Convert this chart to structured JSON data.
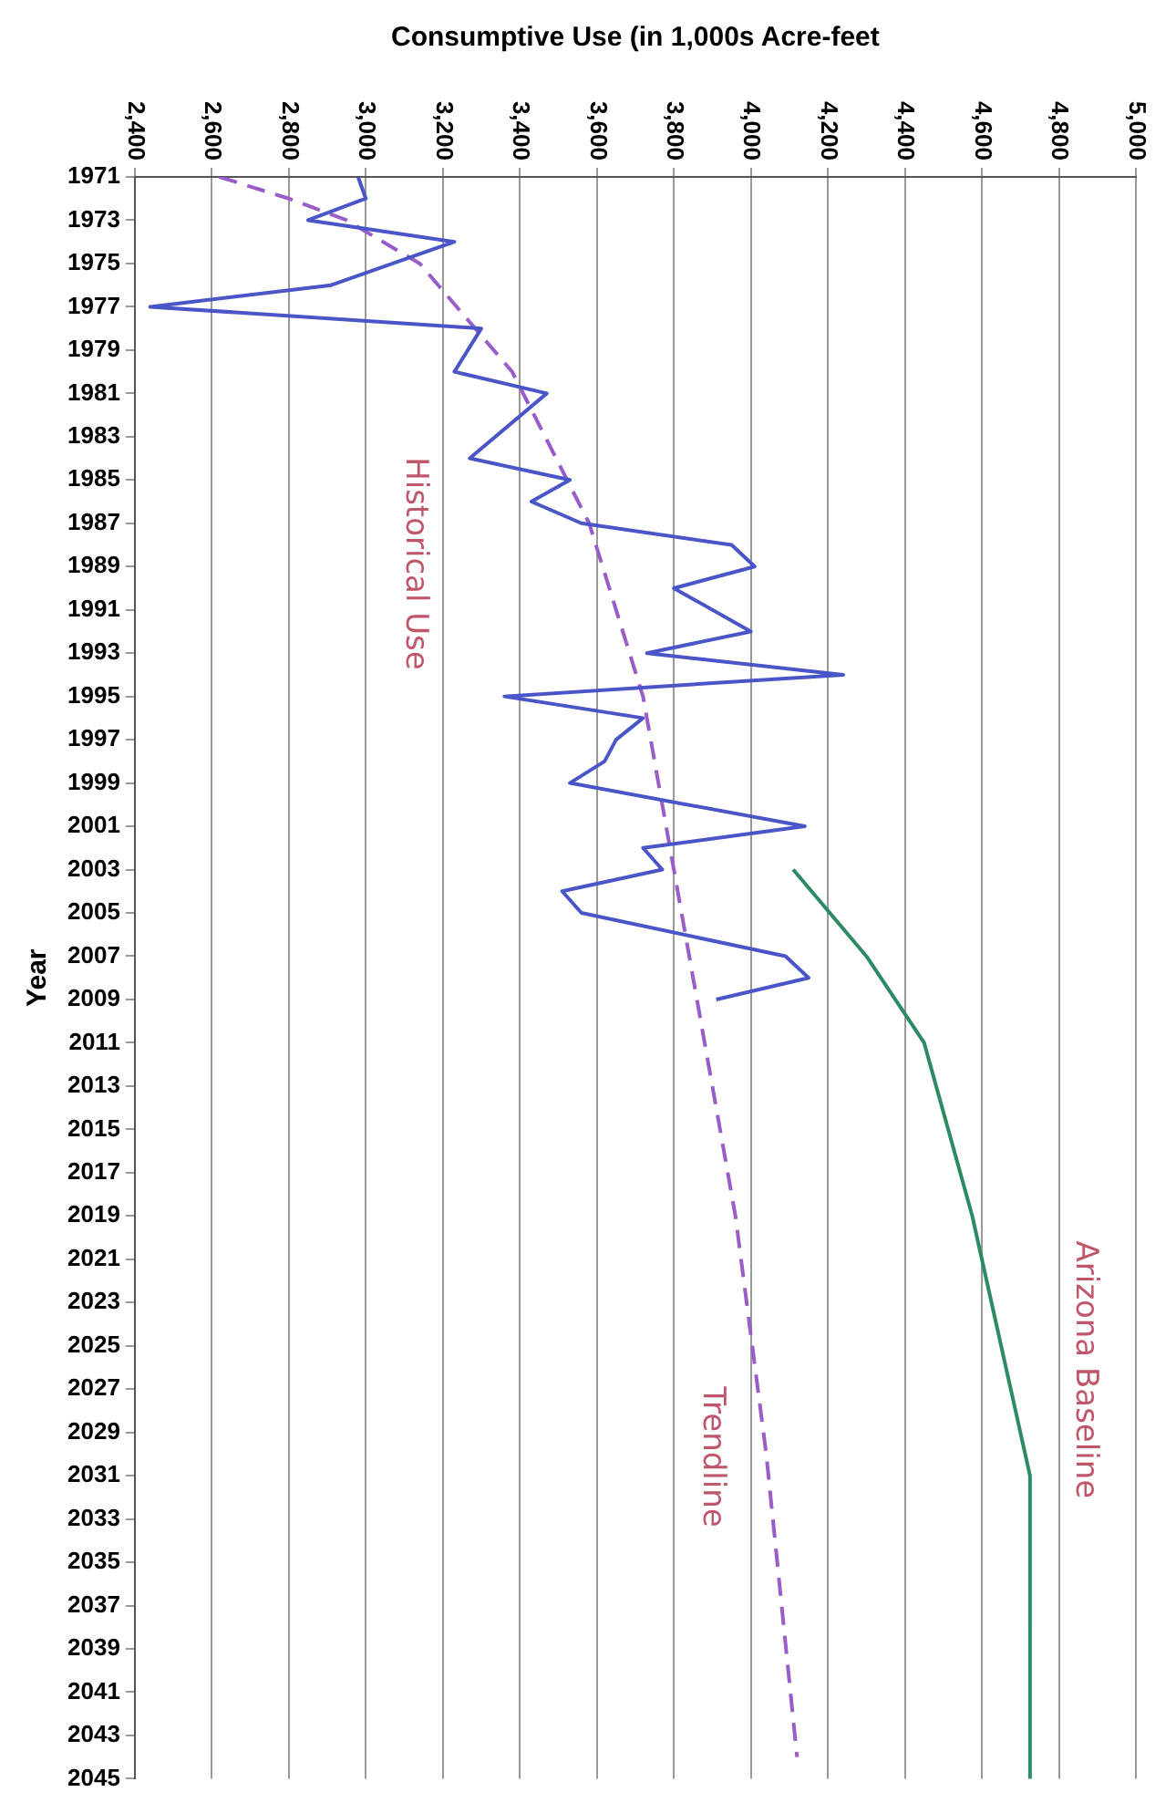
{
  "chart_data": {
    "type": "line",
    "orientation": "horizontal",
    "xlabel": "Consumptive Use (in 1,000s Acre-feet",
    "ylabel": "Year",
    "xlim": [
      2400,
      5000
    ],
    "xticks": [
      {
        "value": 2400,
        "label": "2,400"
      },
      {
        "value": 2600,
        "label": "2,600"
      },
      {
        "value": 2800,
        "label": "2,800"
      },
      {
        "value": 3000,
        "label": "3,000"
      },
      {
        "value": 3200,
        "label": "3,200"
      },
      {
        "value": 3400,
        "label": "3,400"
      },
      {
        "value": 3600,
        "label": "3,600"
      },
      {
        "value": 3800,
        "label": "3,800"
      },
      {
        "value": 4000,
        "label": "4,000"
      },
      {
        "value": 4200,
        "label": "4,200"
      },
      {
        "value": 4400,
        "label": "4,400"
      },
      {
        "value": 4600,
        "label": "4,600"
      },
      {
        "value": 4800,
        "label": "4,800"
      },
      {
        "value": 5000,
        "label": "5,000"
      }
    ],
    "ylim": [
      2045,
      1971
    ],
    "yticks": [
      1971,
      1973,
      1975,
      1977,
      1979,
      1981,
      1983,
      1985,
      1987,
      1989,
      1991,
      1993,
      1995,
      1997,
      1999,
      2001,
      2003,
      2005,
      2007,
      2009,
      2011,
      2013,
      2015,
      2017,
      2019,
      2021,
      2023,
      2025,
      2027,
      2029,
      2031,
      2033,
      2035,
      2037,
      2039,
      2041,
      2043,
      2045
    ],
    "grid": "x",
    "legend": false,
    "marker": "none",
    "series": [
      {
        "name": "Historical Use",
        "color": "#4a55c8",
        "x": [
          1971,
          1972,
          1973,
          1974,
          1976,
          1977,
          1978,
          1980,
          1981,
          1984,
          1985,
          1986,
          1987,
          1988,
          1989,
          1990,
          1992,
          1993,
          1994,
          1995,
          1996,
          1997,
          1998,
          1999,
          2001,
          2002,
          2003,
          2004,
          2005,
          2007,
          2008,
          2009
        ],
        "values": [
          2980,
          3000,
          2850,
          3230,
          2910,
          2440,
          3300,
          3230,
          3470,
          3270,
          3530,
          3430,
          3560,
          3950,
          4010,
          3800,
          4000,
          3730,
          4240,
          3360,
          3720,
          3650,
          3620,
          3530,
          4140,
          3720,
          3770,
          3510,
          3560,
          4090,
          4150,
          3910
        ]
      },
      {
        "name": "Trendline",
        "color": "#9a5cc8",
        "line_style": "dashed",
        "x": [
          1971,
          1972,
          1973,
          1975,
          1980,
          1987,
          1995,
          2007,
          2019,
          2030,
          2044
        ],
        "values": [
          2620,
          2800,
          2950,
          3140,
          3380,
          3580,
          3720,
          3840,
          3960,
          4040,
          4120
        ]
      },
      {
        "name": "Arizona Baseline",
        "color": "#2e8a62",
        "x": [
          2003,
          2007,
          2011,
          2019,
          2021,
          2031,
          2045
        ],
        "values": [
          4110,
          4300,
          4450,
          4575,
          4600,
          4725,
          4725
        ]
      }
    ]
  }
}
